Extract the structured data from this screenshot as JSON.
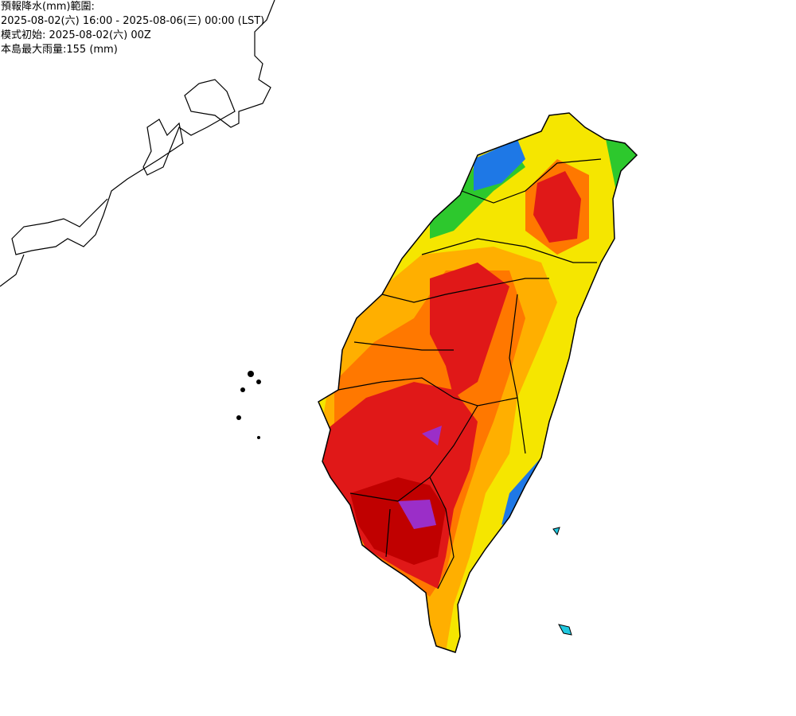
{
  "header": {
    "lines": [
      "預報降水(mm)範圍:",
      "2025-08-02(六) 16:00 - 2025-08-06(三) 00:00 (LST)",
      "模式初始: 2025-08-02(六) 00Z",
      "本島最大雨量:155 (mm)"
    ]
  }
}
